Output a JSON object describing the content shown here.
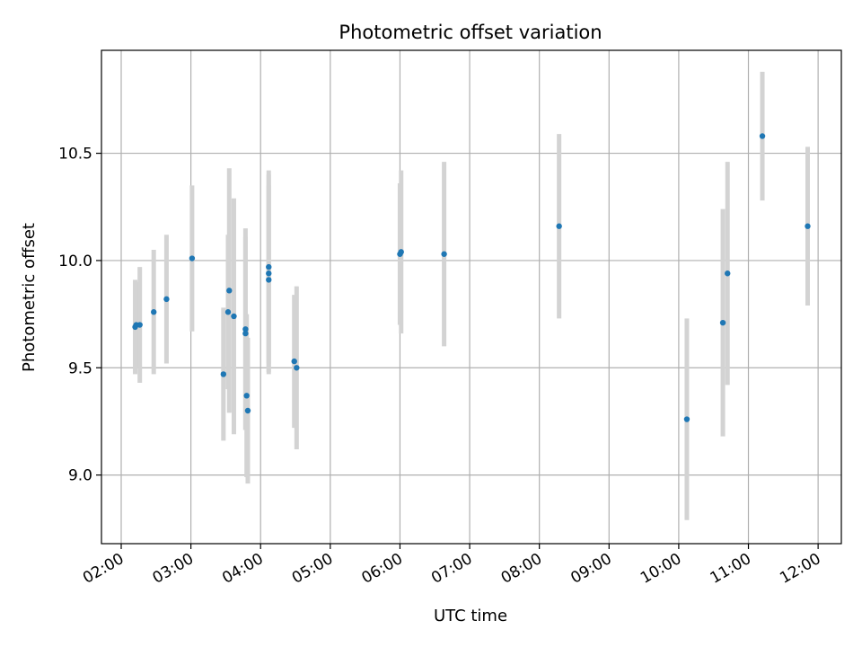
{
  "chart_data": {
    "type": "scatter",
    "title": "Photometric offset variation",
    "xlabel": "UTC time",
    "ylabel": "Photometric offset",
    "x_ticks": [
      "02:00",
      "03:00",
      "04:00",
      "05:00",
      "06:00",
      "07:00",
      "08:00",
      "09:00",
      "10:00",
      "11:00",
      "12:00"
    ],
    "y_ticks": [
      "9.0",
      "9.5",
      "10.0",
      "10.5"
    ],
    "xlim": [
      "01:43",
      "12:20"
    ],
    "ylim": [
      8.68,
      10.98
    ],
    "grid": true,
    "colors": {
      "points": "#1f77b4",
      "errorbars": "#d3d3d3",
      "grid": "#b0b0b0"
    },
    "points": [
      {
        "x": "02:12",
        "y": 9.69,
        "err": 0.22
      },
      {
        "x": "02:13",
        "y": 9.7,
        "err": 0.2
      },
      {
        "x": "02:16",
        "y": 9.7,
        "err": 0.27
      },
      {
        "x": "02:28",
        "y": 9.76,
        "err": 0.29
      },
      {
        "x": "02:39",
        "y": 9.82,
        "err": 0.3
      },
      {
        "x": "03:01",
        "y": 10.01,
        "err": 0.34
      },
      {
        "x": "03:28",
        "y": 9.47,
        "err": 0.31
      },
      {
        "x": "03:32",
        "y": 9.76,
        "err": 0.36
      },
      {
        "x": "03:33",
        "y": 9.86,
        "err": 0.57
      },
      {
        "x": "03:37",
        "y": 9.74,
        "err": 0.55
      },
      {
        "x": "03:47",
        "y": 9.68,
        "err": 0.47
      },
      {
        "x": "03:47",
        "y": 9.66,
        "err": 0.45
      },
      {
        "x": "03:48",
        "y": 9.37,
        "err": 0.38
      },
      {
        "x": "03:49",
        "y": 9.3,
        "err": 0.34
      },
      {
        "x": "04:07",
        "y": 9.94,
        "err": 0.46
      },
      {
        "x": "04:07",
        "y": 9.97,
        "err": 0.45
      },
      {
        "x": "04:07",
        "y": 9.91,
        "err": 0.44
      },
      {
        "x": "04:29",
        "y": 9.53,
        "err": 0.31
      },
      {
        "x": "04:31",
        "y": 9.5,
        "err": 0.38
      },
      {
        "x": "06:00",
        "y": 10.03,
        "err": 0.33
      },
      {
        "x": "06:01",
        "y": 10.04,
        "err": 0.38
      },
      {
        "x": "06:38",
        "y": 10.03,
        "err": 0.43
      },
      {
        "x": "08:17",
        "y": 10.16,
        "err": 0.43
      },
      {
        "x": "10:07",
        "y": 9.26,
        "err": 0.47
      },
      {
        "x": "10:38",
        "y": 9.71,
        "err": 0.53
      },
      {
        "x": "10:42",
        "y": 9.94,
        "err": 0.52
      },
      {
        "x": "11:12",
        "y": 10.58,
        "err": 0.3
      },
      {
        "x": "11:51",
        "y": 10.16,
        "err": 0.37
      }
    ]
  }
}
